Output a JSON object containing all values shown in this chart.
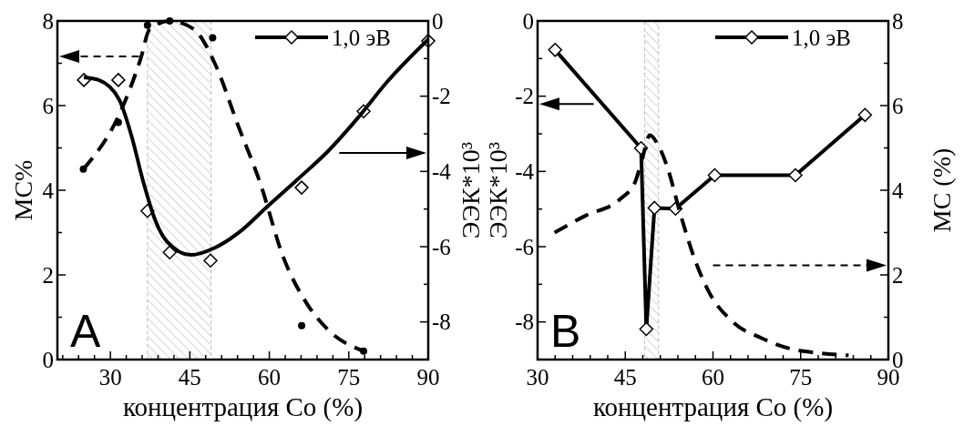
{
  "chart_data": [
    {
      "type": "line",
      "xlabel": "концентрация Co (%)",
      "ylabel": "МС%",
      "y2label": "ЭЭК*10³",
      "legend": "top right",
      "annotations": [
        "A"
      ],
      "xlim": [
        20,
        90
      ],
      "xticks": [
        {
          "value": 21,
          "label": null
        },
        {
          "value": 24,
          "label": null
        },
        {
          "value": 27,
          "label": null
        },
        30,
        {
          "value": 33,
          "label": null
        },
        {
          "value": 36,
          "label": null
        },
        {
          "value": 39,
          "label": null
        },
        {
          "value": 42,
          "label": null
        },
        45,
        {
          "value": 48,
          "label": null
        },
        {
          "value": 51,
          "label": null
        },
        {
          "value": 54,
          "label": null
        },
        {
          "value": 57,
          "label": null
        },
        60,
        {
          "value": 63,
          "label": null
        },
        {
          "value": 66,
          "label": null
        },
        {
          "value": 69,
          "label": null
        },
        {
          "value": 72,
          "label": null
        },
        75,
        {
          "value": 78,
          "label": null
        },
        {
          "value": 81,
          "label": null
        },
        {
          "value": 84,
          "label": null
        },
        {
          "value": 87,
          "label": null
        },
        90
      ],
      "ylim": [
        0,
        8
      ],
      "yticks": [
        0,
        {
          "value": 1,
          "label": null
        },
        2,
        {
          "value": 3,
          "label": null
        },
        4,
        {
          "value": 5,
          "label": null
        },
        6,
        {
          "value": 7,
          "label": null
        },
        8
      ],
      "y2lim": [
        -9,
        0
      ],
      "y2ticks": [
        -8,
        {
          "value": -7,
          "label": null
        },
        -6,
        {
          "value": -5,
          "label": null
        },
        -4,
        {
          "value": -3,
          "label": null
        },
        -2,
        {
          "value": -1,
          "label": null
        },
        0
      ],
      "bands": [
        {
          "axis": "x",
          "from": 37,
          "to": 49,
          "color": "#bbbbbb"
        }
      ],
      "series": [
        {
          "name": "1,0 эВ",
          "type": "scatter",
          "marker": "diamond",
          "axis": "y2",
          "color": "#000000",
          "x": [
            25,
            31.5,
            37,
            41.2,
            48.9,
            66.1,
            77.8,
            90
          ],
          "values": [
            -1.57,
            -1.57,
            -5.05,
            -6.15,
            -6.37,
            -4.43,
            -2.4,
            -0.53
          ]
        },
        {
          "type": "line",
          "line_style": "solid",
          "axis": "y2",
          "color": "#000000",
          "x": [
            25,
            27.8,
            31.7,
            34,
            36.2,
            38.5,
            40.7,
            45.2,
            49.7,
            54.2,
            59.8,
            65.5,
            71.1,
            76.7,
            82.3,
            90
          ],
          "values": [
            -1.5,
            -1.57,
            -2.1,
            -3.06,
            -4.27,
            -5.31,
            -5.87,
            -6.22,
            -6.03,
            -5.63,
            -4.91,
            -4.19,
            -3.46,
            -2.58,
            -1.61,
            -0.49
          ]
        },
        {
          "type": "scatter",
          "marker": "circle",
          "color": "#000000",
          "x": [
            24.9,
            31.5,
            37,
            41.2,
            49.3,
            66.1,
            77.8
          ],
          "values": [
            4.5,
            5.6,
            7.9,
            8,
            7.6,
            0.8,
            0.2
          ]
        },
        {
          "type": "line",
          "line_style": "dashed",
          "color": "#000000",
          "x": [
            24.9,
            31.7,
            35.7,
            37.4,
            41.2,
            45.8,
            49.7,
            54.2,
            58.2,
            62.7,
            67.2,
            71.1,
            77.8
          ],
          "values": [
            4.5,
            5.8,
            7.1,
            7.8,
            8,
            7.8,
            7,
            5.5,
            4.2,
            2.4,
            1.3,
            0.7,
            0.2
          ]
        }
      ]
    },
    {
      "type": "line",
      "xlabel": "концентрация Co (%)",
      "ylabel": "ЭЭК*10³",
      "y2label": "МС (%)",
      "legend": "top right",
      "annotations": [
        "B"
      ],
      "xlim": [
        30,
        90
      ],
      "xticks": [
        30,
        {
          "value": 33,
          "label": null
        },
        {
          "value": 36,
          "label": null
        },
        {
          "value": 39,
          "label": null
        },
        {
          "value": 42,
          "label": null
        },
        45,
        {
          "value": 48,
          "label": null
        },
        {
          "value": 51,
          "label": null
        },
        {
          "value": 54,
          "label": null
        },
        {
          "value": 57,
          "label": null
        },
        60,
        {
          "value": 63,
          "label": null
        },
        {
          "value": 66,
          "label": null
        },
        {
          "value": 69,
          "label": null
        },
        {
          "value": 72,
          "label": null
        },
        75,
        {
          "value": 78,
          "label": null
        },
        {
          "value": 81,
          "label": null
        },
        {
          "value": 84,
          "label": null
        },
        {
          "value": 87,
          "label": null
        },
        90
      ],
      "ylim": [
        -9,
        0
      ],
      "yticks": [
        -8,
        {
          "value": -7,
          "label": null
        },
        -6,
        {
          "value": -5,
          "label": null
        },
        -4,
        {
          "value": -3,
          "label": null
        },
        -2,
        {
          "value": -1,
          "label": null
        },
        0
      ],
      "y2lim": [
        0,
        8
      ],
      "y2ticks": [
        0,
        {
          "value": 1,
          "label": null
        },
        2,
        {
          "value": 3,
          "label": null
        },
        4,
        {
          "value": 5,
          "label": null
        },
        6,
        {
          "value": 7,
          "label": null
        },
        8
      ],
      "bands": [
        {
          "axis": "x",
          "from": 48.3,
          "to": 50.7,
          "color": "#bbbbbb"
        }
      ],
      "series": [
        {
          "name": "1,0 эВ",
          "type": "line",
          "marker": "diamond",
          "line_style": "solid",
          "color": "#000000",
          "x": [
            33,
            47.7,
            48.6,
            50,
            53.6,
            60.3,
            74.1,
            86
          ],
          "values": [
            -0.77,
            -3.38,
            -8.19,
            -4.97,
            -4.99,
            -4.1,
            -4.1,
            -2.5
          ]
        },
        {
          "type": "line",
          "line_style": "dashed",
          "axis": "y2",
          "color": "#000000",
          "x": [
            32.9,
            38.2,
            44.2,
            46.7,
            48,
            49.2,
            50.5,
            52.3,
            54.3,
            56.8,
            59.3,
            63.3,
            68.4,
            73.4,
            78.4,
            83.2
          ],
          "values": [
            3,
            3.4,
            3.8,
            4.2,
            4.8,
            5.3,
            5.1,
            4.5,
            3.5,
            2.4,
            1.6,
            0.9,
            0.5,
            0.25,
            0.15,
            0.1
          ]
        }
      ]
    }
  ]
}
